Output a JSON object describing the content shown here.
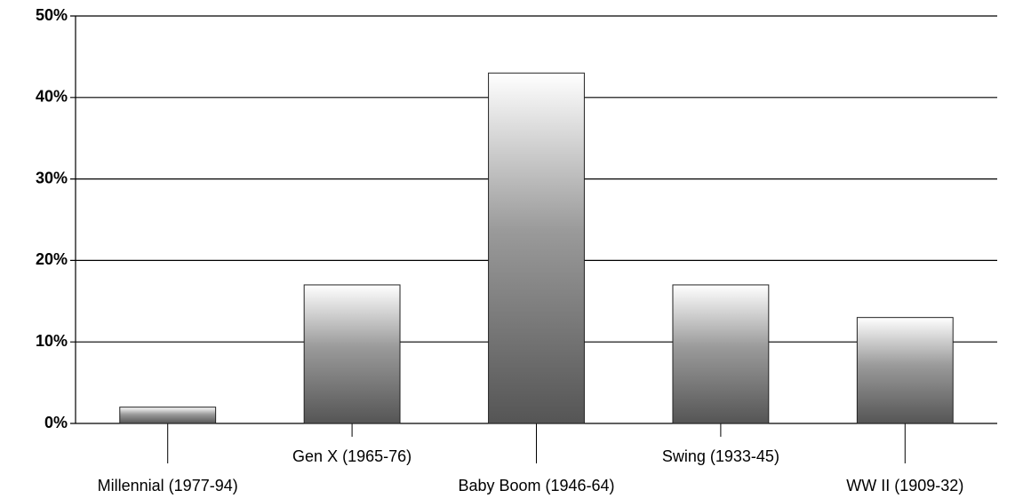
{
  "chart_data": {
    "type": "bar",
    "categories": [
      "Millennial (1977-94)",
      "Gen X (1965-76)",
      "Baby Boom (1946-64)",
      "Swing (1933-45)",
      "WW II (1909-32)"
    ],
    "values": [
      2,
      17,
      43,
      17,
      13
    ],
    "color": "#9a9a9a",
    "ylim": [
      0,
      50
    ],
    "yticks": [
      {
        "value": 0,
        "label": "0%"
      },
      {
        "value": 10,
        "label": "10%"
      },
      {
        "value": 20,
        "label": "20%"
      },
      {
        "value": 30,
        "label": "30%"
      },
      {
        "value": 40,
        "label": "40%"
      },
      {
        "value": 50,
        "label": "50%"
      }
    ],
    "grid": true
  }
}
